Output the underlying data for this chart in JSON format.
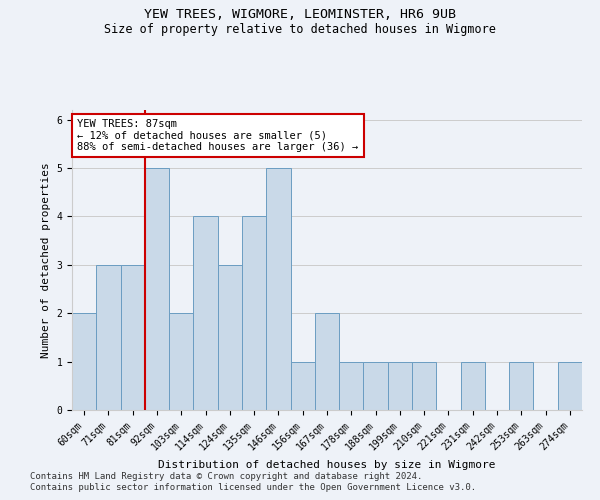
{
  "title": "YEW TREES, WIGMORE, LEOMINSTER, HR6 9UB",
  "subtitle": "Size of property relative to detached houses in Wigmore",
  "xlabel": "Distribution of detached houses by size in Wigmore",
  "ylabel": "Number of detached properties",
  "categories": [
    "60sqm",
    "71sqm",
    "81sqm",
    "92sqm",
    "103sqm",
    "114sqm",
    "124sqm",
    "135sqm",
    "146sqm",
    "156sqm",
    "167sqm",
    "178sqm",
    "188sqm",
    "199sqm",
    "210sqm",
    "221sqm",
    "231sqm",
    "242sqm",
    "253sqm",
    "263sqm",
    "274sqm"
  ],
  "bar_values": [
    2,
    3,
    3,
    5,
    2,
    4,
    3,
    4,
    5,
    1,
    2,
    1,
    1,
    1,
    1,
    0,
    1,
    0,
    1,
    0,
    1
  ],
  "bar_color": "#c9d9e8",
  "bar_edge_color": "#6b9dc2",
  "vline_bin_index": 2.5,
  "annotation_text": "YEW TREES: 87sqm\n← 12% of detached houses are smaller (5)\n88% of semi-detached houses are larger (36) →",
  "annotation_box_color": "#ffffff",
  "annotation_box_edge_color": "#cc0000",
  "ylim": [
    0,
    6.2
  ],
  "yticks": [
    0,
    1,
    2,
    3,
    4,
    5,
    6
  ],
  "grid_color": "#cccccc",
  "background_color": "#eef2f8",
  "footer_line1": "Contains HM Land Registry data © Crown copyright and database right 2024.",
  "footer_line2": "Contains public sector information licensed under the Open Government Licence v3.0.",
  "title_fontsize": 9.5,
  "subtitle_fontsize": 8.5,
  "axis_label_fontsize": 8,
  "tick_fontsize": 7,
  "annotation_fontsize": 7.5,
  "footer_fontsize": 6.5
}
